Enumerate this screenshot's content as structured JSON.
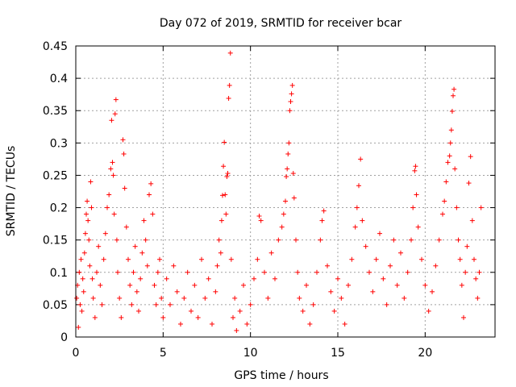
{
  "chart_data": {
    "type": "scatter",
    "title": "Day 072 of 2019, SRMTID for receiver bcar",
    "xlabel": "GPS time / hours",
    "ylabel": "SRMTID / TECUs",
    "xlim": [
      0,
      24
    ],
    "ylim": [
      0,
      0.45
    ],
    "xticks": [
      0,
      5,
      10,
      15,
      20
    ],
    "xtick_labels": [
      "0",
      "5",
      "10",
      "15",
      "20"
    ],
    "yticks": [
      0,
      0.05,
      0.1,
      0.15,
      0.2,
      0.25,
      0.3,
      0.35,
      0.4,
      0.45
    ],
    "ytick_labels": [
      "0",
      "0.05",
      "0.1",
      "0.15",
      "0.2",
      "0.25",
      "0.3",
      "0.35",
      "0.4",
      "0.45"
    ],
    "grid": true,
    "marker": "+",
    "color": "#ff0000",
    "series": [
      {
        "name": "SRMTID",
        "points": [
          [
            0.05,
            0.06
          ],
          [
            0.1,
            0.08
          ],
          [
            0.15,
            0.015
          ],
          [
            0.2,
            0.1
          ],
          [
            0.25,
            0.05
          ],
          [
            0.3,
            0.12
          ],
          [
            0.35,
            0.04
          ],
          [
            0.4,
            0.09
          ],
          [
            0.45,
            0.07
          ],
          [
            0.5,
            0.13
          ],
          [
            0.55,
            0.16
          ],
          [
            0.6,
            0.19
          ],
          [
            0.65,
            0.21
          ],
          [
            0.7,
            0.18
          ],
          [
            0.75,
            0.15
          ],
          [
            0.8,
            0.11
          ],
          [
            0.85,
            0.24
          ],
          [
            0.9,
            0.2
          ],
          [
            0.95,
            0.09
          ],
          [
            1.0,
            0.06
          ],
          [
            1.1,
            0.03
          ],
          [
            1.2,
            0.1
          ],
          [
            1.3,
            0.14
          ],
          [
            1.4,
            0.08
          ],
          [
            1.5,
            0.05
          ],
          [
            1.6,
            0.12
          ],
          [
            1.7,
            0.16
          ],
          [
            1.8,
            0.2
          ],
          [
            1.9,
            0.22
          ],
          [
            2.0,
            0.26
          ],
          [
            2.05,
            0.335
          ],
          [
            2.1,
            0.27
          ],
          [
            2.15,
            0.25
          ],
          [
            2.2,
            0.19
          ],
          [
            2.25,
            0.345
          ],
          [
            2.3,
            0.367
          ],
          [
            2.35,
            0.15
          ],
          [
            2.4,
            0.1
          ],
          [
            2.5,
            0.06
          ],
          [
            2.6,
            0.03
          ],
          [
            2.7,
            0.305
          ],
          [
            2.75,
            0.283
          ],
          [
            2.8,
            0.23
          ],
          [
            2.9,
            0.17
          ],
          [
            3.0,
            0.12
          ],
          [
            3.1,
            0.08
          ],
          [
            3.2,
            0.05
          ],
          [
            3.3,
            0.1
          ],
          [
            3.4,
            0.14
          ],
          [
            3.5,
            0.07
          ],
          [
            3.6,
            0.04
          ],
          [
            3.7,
            0.09
          ],
          [
            3.8,
            0.13
          ],
          [
            3.9,
            0.18
          ],
          [
            4.0,
            0.15
          ],
          [
            4.1,
            0.11
          ],
          [
            4.2,
            0.22
          ],
          [
            4.3,
            0.237
          ],
          [
            4.4,
            0.19
          ],
          [
            4.5,
            0.08
          ],
          [
            4.6,
            0.05
          ],
          [
            4.7,
            0.1
          ],
          [
            4.8,
            0.12
          ],
          [
            4.9,
            0.06
          ],
          [
            5.0,
            0.03
          ],
          [
            5.2,
            0.09
          ],
          [
            5.4,
            0.05
          ],
          [
            5.6,
            0.11
          ],
          [
            5.8,
            0.07
          ],
          [
            6.0,
            0.02
          ],
          [
            6.2,
            0.06
          ],
          [
            6.4,
            0.1
          ],
          [
            6.6,
            0.04
          ],
          [
            6.8,
            0.08
          ],
          [
            7.0,
            0.03
          ],
          [
            7.2,
            0.12
          ],
          [
            7.4,
            0.06
          ],
          [
            7.6,
            0.09
          ],
          [
            7.8,
            0.02
          ],
          [
            8.0,
            0.07
          ],
          [
            8.1,
            0.11
          ],
          [
            8.2,
            0.15
          ],
          [
            8.3,
            0.13
          ],
          [
            8.35,
            0.18
          ],
          [
            8.4,
            0.219
          ],
          [
            8.45,
            0.264
          ],
          [
            8.5,
            0.301
          ],
          [
            8.55,
            0.22
          ],
          [
            8.6,
            0.19
          ],
          [
            8.65,
            0.248
          ],
          [
            8.7,
            0.253
          ],
          [
            8.75,
            0.369
          ],
          [
            8.8,
            0.389
          ],
          [
            8.85,
            0.439
          ],
          [
            8.9,
            0.12
          ],
          [
            9.0,
            0.03
          ],
          [
            9.1,
            0.06
          ],
          [
            9.2,
            0.01
          ],
          [
            9.4,
            0.04
          ],
          [
            9.6,
            0.08
          ],
          [
            9.8,
            0.02
          ],
          [
            10.0,
            0.05
          ],
          [
            10.2,
            0.09
          ],
          [
            10.4,
            0.12
          ],
          [
            10.5,
            0.187
          ],
          [
            10.6,
            0.18
          ],
          [
            10.8,
            0.1
          ],
          [
            11.0,
            0.06
          ],
          [
            11.2,
            0.13
          ],
          [
            11.4,
            0.09
          ],
          [
            11.6,
            0.15
          ],
          [
            11.8,
            0.17
          ],
          [
            11.9,
            0.19
          ],
          [
            12.0,
            0.21
          ],
          [
            12.05,
            0.248
          ],
          [
            12.1,
            0.26
          ],
          [
            12.15,
            0.283
          ],
          [
            12.2,
            0.3
          ],
          [
            12.25,
            0.35
          ],
          [
            12.3,
            0.364
          ],
          [
            12.35,
            0.376
          ],
          [
            12.4,
            0.389
          ],
          [
            12.45,
            0.253
          ],
          [
            12.5,
            0.215
          ],
          [
            12.6,
            0.15
          ],
          [
            12.7,
            0.1
          ],
          [
            12.8,
            0.06
          ],
          [
            13.0,
            0.04
          ],
          [
            13.2,
            0.08
          ],
          [
            13.4,
            0.02
          ],
          [
            13.6,
            0.05
          ],
          [
            13.8,
            0.1
          ],
          [
            14.0,
            0.15
          ],
          [
            14.1,
            0.18
          ],
          [
            14.2,
            0.195
          ],
          [
            14.4,
            0.11
          ],
          [
            14.6,
            0.07
          ],
          [
            14.8,
            0.04
          ],
          [
            15.0,
            0.09
          ],
          [
            15.2,
            0.06
          ],
          [
            15.4,
            0.02
          ],
          [
            15.6,
            0.08
          ],
          [
            15.8,
            0.12
          ],
          [
            16.0,
            0.17
          ],
          [
            16.1,
            0.2
          ],
          [
            16.2,
            0.234
          ],
          [
            16.3,
            0.275
          ],
          [
            16.4,
            0.18
          ],
          [
            16.6,
            0.14
          ],
          [
            16.8,
            0.1
          ],
          [
            17.0,
            0.07
          ],
          [
            17.2,
            0.12
          ],
          [
            17.4,
            0.16
          ],
          [
            17.6,
            0.09
          ],
          [
            17.8,
            0.05
          ],
          [
            18.0,
            0.11
          ],
          [
            18.2,
            0.15
          ],
          [
            18.4,
            0.08
          ],
          [
            18.6,
            0.13
          ],
          [
            18.8,
            0.06
          ],
          [
            19.0,
            0.1
          ],
          [
            19.2,
            0.15
          ],
          [
            19.3,
            0.2
          ],
          [
            19.4,
            0.257
          ],
          [
            19.45,
            0.264
          ],
          [
            19.5,
            0.22
          ],
          [
            19.6,
            0.17
          ],
          [
            19.8,
            0.12
          ],
          [
            20.0,
            0.08
          ],
          [
            20.2,
            0.04
          ],
          [
            20.4,
            0.07
          ],
          [
            20.6,
            0.11
          ],
          [
            20.8,
            0.15
          ],
          [
            21.0,
            0.19
          ],
          [
            21.1,
            0.21
          ],
          [
            21.2,
            0.24
          ],
          [
            21.3,
            0.27
          ],
          [
            21.4,
            0.28
          ],
          [
            21.45,
            0.3
          ],
          [
            21.5,
            0.32
          ],
          [
            21.55,
            0.349
          ],
          [
            21.6,
            0.373
          ],
          [
            21.65,
            0.383
          ],
          [
            21.7,
            0.26
          ],
          [
            21.8,
            0.2
          ],
          [
            21.9,
            0.15
          ],
          [
            22.0,
            0.12
          ],
          [
            22.1,
            0.08
          ],
          [
            22.2,
            0.03
          ],
          [
            22.3,
            0.1
          ],
          [
            22.4,
            0.14
          ],
          [
            22.5,
            0.238
          ],
          [
            22.6,
            0.279
          ],
          [
            22.7,
            0.18
          ],
          [
            22.8,
            0.12
          ],
          [
            22.9,
            0.09
          ],
          [
            23.0,
            0.06
          ],
          [
            23.1,
            0.1
          ],
          [
            23.2,
            0.2
          ]
        ]
      }
    ]
  }
}
